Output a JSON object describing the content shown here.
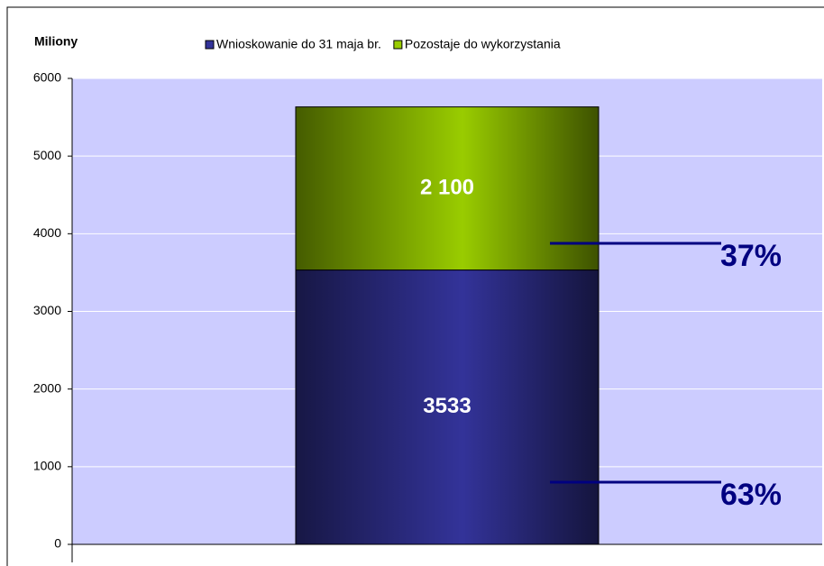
{
  "chart_data": {
    "type": "bar",
    "stacked": true,
    "y_label": "Miliony",
    "categories": [
      null
    ],
    "series": [
      {
        "name": "Wnioskowanie do 31 maja br.",
        "color": "#333399",
        "values": [
          3533
        ]
      },
      {
        "name": "Pozostaje do wykorzystania",
        "color": "#99cc00",
        "values": [
          2100
        ],
        "value_labels": [
          "2 100"
        ]
      }
    ],
    "annotations": [
      "37%",
      "63%"
    ],
    "ylim": [
      0,
      6000
    ],
    "yticks": [
      0,
      1000,
      2000,
      3000,
      4000,
      5000,
      6000
    ],
    "grid": true,
    "legend": "top",
    "background": "#ccccff"
  }
}
